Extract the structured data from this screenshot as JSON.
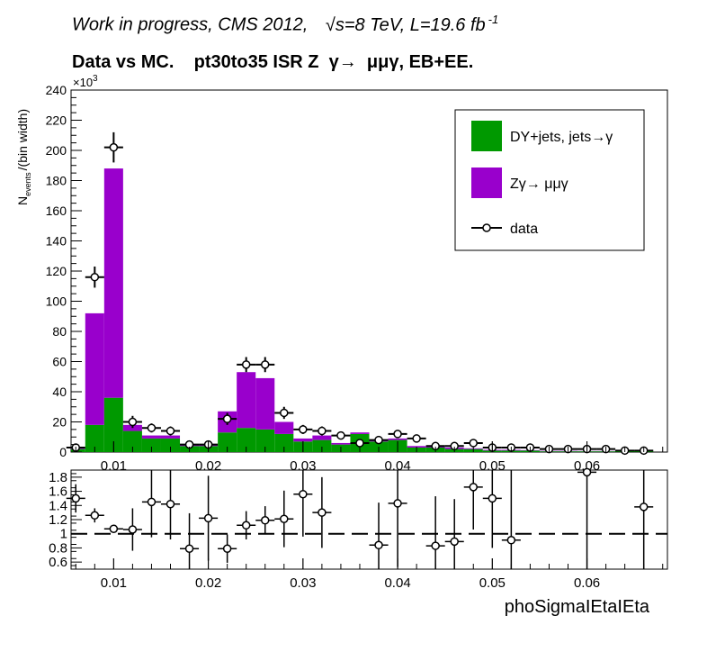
{
  "header": {
    "line1": "Work in progress, CMS 2012,",
    "sqrt_s": "√s=8 TeV, L=19.6 fb",
    "lumi_exp": "-1",
    "line2": "Data vs MC.    pt30to35 ISR Z  γ→  μμγ, EB+EE."
  },
  "chart_data": [
    {
      "type": "bar",
      "stacked": true,
      "ylabel_main": "N",
      "ylabel_sub": "events",
      "ylabel_tail": "/(bin width)",
      "y_multiplier": "×10",
      "y_multiplier_exp": "3",
      "xlim": [
        0.0055,
        0.0685
      ],
      "ylim": [
        0,
        240
      ],
      "x_ticks": [
        0.01,
        0.02,
        0.03,
        0.04,
        0.05,
        0.06
      ],
      "x_tick_labels": [
        "0.01",
        "0.02",
        "0.03",
        "0.04",
        "0.05",
        "0.06"
      ],
      "y_ticks": [
        0,
        20,
        40,
        60,
        80,
        100,
        120,
        140,
        160,
        180,
        200,
        220,
        240
      ],
      "y_tick_labels": [
        "0",
        "20",
        "40",
        "60",
        "80",
        "100",
        "120",
        "140",
        "160",
        "180",
        "200",
        "220",
        "240"
      ],
      "bin_edges": [
        0.005,
        0.007,
        0.009,
        0.011,
        0.013,
        0.015,
        0.017,
        0.019,
        0.021,
        0.023,
        0.025,
        0.027,
        0.029,
        0.031,
        0.033,
        0.035,
        0.037,
        0.039,
        0.041,
        0.043,
        0.045,
        0.047,
        0.049,
        0.051,
        0.053,
        0.055,
        0.057,
        0.059,
        0.061,
        0.063,
        0.065,
        0.067
      ],
      "series": [
        {
          "name": "DY+jets, jets→γ",
          "color": "#009900",
          "values": [
            2,
            18,
            36,
            14,
            9,
            9,
            4,
            4,
            13,
            16,
            15,
            12,
            7,
            8,
            5,
            12,
            7,
            8,
            3,
            3,
            2,
            2,
            1,
            1,
            1,
            0.5,
            0.5,
            0.5,
            0.5,
            1,
            1
          ]
        },
        {
          "name": "Zγ→ μμγ",
          "color": "#9900cc",
          "values": [
            1,
            74,
            152,
            4,
            2,
            2,
            1,
            1,
            14,
            37,
            34,
            8,
            2,
            3,
            1,
            1,
            1,
            1,
            1,
            1,
            1,
            0.5,
            0.5,
            0.5,
            0.3,
            0.3,
            0.3,
            0.2,
            0.2,
            0.2,
            0.1
          ]
        }
      ],
      "data_points": {
        "name": "data",
        "x": [
          0.006,
          0.008,
          0.01,
          0.012,
          0.014,
          0.016,
          0.018,
          0.02,
          0.022,
          0.024,
          0.026,
          0.028,
          0.03,
          0.032,
          0.034,
          0.036,
          0.038,
          0.04,
          0.042,
          0.044,
          0.046,
          0.048,
          0.05,
          0.052,
          0.054,
          0.056,
          0.058,
          0.06,
          0.062,
          0.064,
          0.066
        ],
        "y": [
          3,
          116,
          202,
          20,
          16,
          14,
          5,
          5,
          22,
          58,
          58,
          26,
          15,
          14,
          11,
          6,
          8,
          12,
          9,
          4,
          4,
          6,
          3,
          3,
          3,
          2,
          2,
          2,
          2,
          1,
          1
        ],
        "yerr": [
          2,
          7,
          10,
          4,
          3,
          3,
          2,
          2,
          4,
          5,
          5,
          4,
          3,
          3,
          2,
          2,
          2,
          2,
          2,
          1,
          1,
          1,
          1,
          1,
          1,
          1,
          1,
          1,
          1,
          1,
          1
        ]
      },
      "legend_position": "top-right"
    },
    {
      "type": "scatter",
      "xlabel": "phoSigmaIEtaIEta",
      "xlim": [
        0.0055,
        0.0685
      ],
      "ylim": [
        0.5,
        1.9
      ],
      "reference_line": 1.0,
      "x_ticks": [
        0.01,
        0.02,
        0.03,
        0.04,
        0.05,
        0.06
      ],
      "x_tick_labels": [
        "0.01",
        "0.02",
        "0.03",
        "0.04",
        "0.05",
        "0.06"
      ],
      "y_ticks": [
        0.6,
        0.8,
        1,
        1.2,
        1.4,
        1.6,
        1.8
      ],
      "y_tick_labels": [
        "0.6",
        "0.8",
        "1",
        "1.2",
        "1.4",
        "1.6",
        "1.8"
      ],
      "x": [
        0.006,
        0.008,
        0.01,
        0.012,
        0.014,
        0.016,
        0.018,
        0.02,
        0.022,
        0.024,
        0.026,
        0.028,
        0.03,
        0.032,
        0.04,
        0.044,
        0.046,
        0.048,
        0.05,
        0.052,
        0.06,
        0.066,
        0.038
      ],
      "y": [
        1.5,
        1.26,
        1.07,
        1.06,
        1.45,
        1.42,
        0.79,
        1.22,
        0.79,
        1.12,
        1.19,
        1.21,
        1.56,
        1.3,
        1.43,
        0.83,
        0.89,
        1.66,
        1.5,
        0.91,
        1.87,
        1.38,
        0.84
      ],
      "yerr": [
        0.2,
        0.1,
        0.05,
        0.3,
        0.5,
        0.5,
        0.5,
        0.6,
        0.2,
        0.2,
        0.2,
        0.4,
        0.6,
        0.5,
        0.9,
        0.7,
        0.6,
        0.6,
        0.7,
        1.5,
        1.5,
        1.3,
        0.6
      ]
    }
  ]
}
